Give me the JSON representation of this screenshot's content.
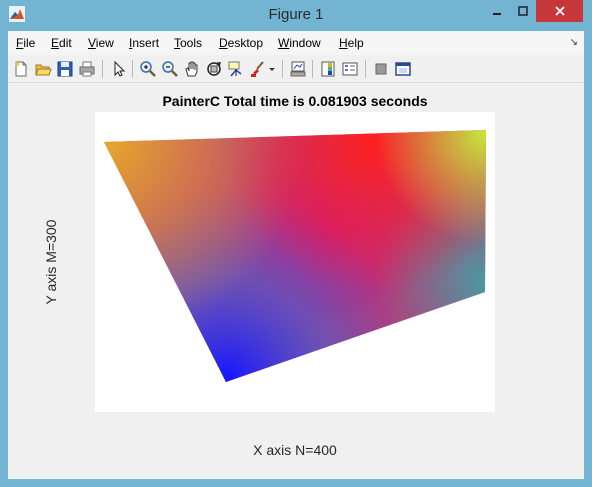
{
  "window": {
    "title": "Figure 1"
  },
  "menu": [
    "File",
    "Edit",
    "View",
    "Insert",
    "Tools",
    "Desktop",
    "Window",
    "Help"
  ],
  "menu_accel": [
    "F",
    "E",
    "V",
    "I",
    "T",
    "D",
    "W",
    "H"
  ],
  "toolbar_icons": [
    "new-figure-icon",
    "open-file-icon",
    "save-icon",
    "print-icon",
    "edit-plot-arrow-icon",
    "zoom-in-icon",
    "zoom-out-icon",
    "pan-hand-icon",
    "rotate-3d-icon",
    "data-cursor-icon",
    "brush-icon",
    "brush-dropdown-icon",
    "link-plot-icon",
    "insert-colorbar-icon",
    "insert-legend-icon",
    "hide-plot-tools-icon",
    "show-plot-tools-icon"
  ],
  "plot": {
    "title": "PainterC Total time is 0.081903 seconds",
    "xlabel": "X axis N=400",
    "ylabel": "Y axis M=300"
  },
  "image": {
    "kind": "gradient-shaded quadrilateral",
    "vertex_colors": {
      "top_left": "#e6a82a",
      "top_center": "#ff2020",
      "top_right": "#c8e63a",
      "right": "#4a9aa0",
      "bottom": "#1414ff",
      "center": "#c81a80"
    }
  }
}
